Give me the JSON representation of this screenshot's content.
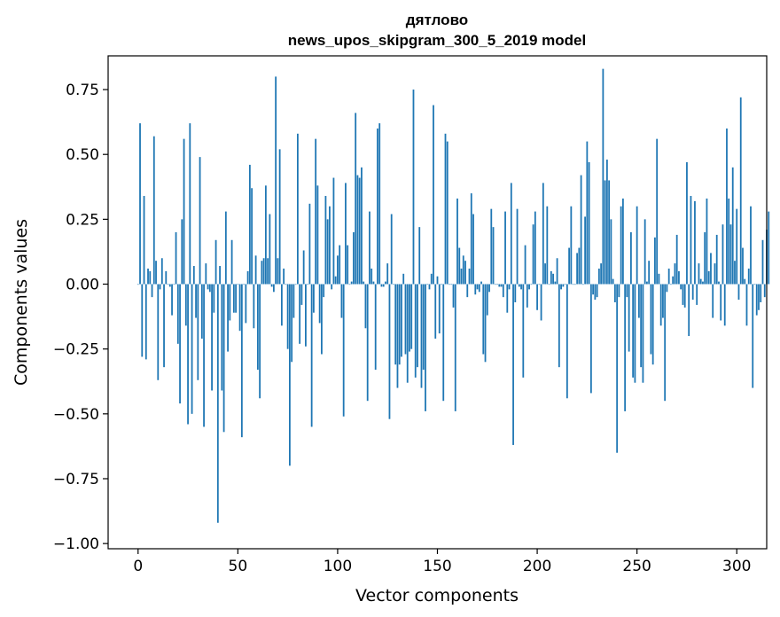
{
  "chart_data": {
    "type": "bar",
    "title": [
      "дятлово",
      "news_upos_skipgram_300_5_2019 model"
    ],
    "xlabel": "Vector components",
    "ylabel": "Components values",
    "xlim": [
      -15,
      315
    ],
    "ylim": [
      -1.02,
      0.88
    ],
    "xticks": [
      0,
      50,
      100,
      150,
      200,
      250,
      300
    ],
    "xtick_labels": [
      "0",
      "50",
      "100",
      "150",
      "200",
      "250",
      "300"
    ],
    "yticks": [
      -1.0,
      -0.75,
      -0.5,
      -0.25,
      0.0,
      0.25,
      0.5,
      0.75
    ],
    "ytick_labels": [
      "−1.00",
      "−0.75",
      "−0.50",
      "−0.25",
      "0.00",
      "0.25",
      "0.50",
      "0.75"
    ],
    "bar_color": "#1f77b4",
    "grid": false,
    "values": [
      0.0,
      0.62,
      -0.28,
      0.34,
      -0.29,
      0.06,
      0.05,
      -0.05,
      0.57,
      0.09,
      -0.37,
      -0.02,
      0.1,
      -0.32,
      0.05,
      0.0,
      -0.01,
      -0.12,
      0.0,
      0.2,
      -0.23,
      -0.46,
      0.25,
      0.56,
      -0.16,
      -0.54,
      0.62,
      -0.5,
      0.07,
      -0.13,
      -0.37,
      0.49,
      -0.21,
      -0.55,
      0.08,
      -0.02,
      -0.03,
      -0.41,
      -0.11,
      0.17,
      -0.92,
      0.07,
      -0.41,
      -0.57,
      0.28,
      -0.26,
      -0.14,
      0.17,
      -0.11,
      -0.11,
      0.0,
      -0.18,
      -0.59,
      0.0,
      -0.15,
      0.05,
      0.46,
      0.37,
      -0.17,
      0.11,
      -0.33,
      -0.44,
      0.09,
      0.1,
      0.38,
      0.1,
      0.27,
      -0.01,
      -0.03,
      0.8,
      0.1,
      0.52,
      -0.16,
      0.06,
      0.0,
      -0.25,
      -0.7,
      -0.3,
      -0.13,
      0.0,
      0.58,
      -0.23,
      -0.08,
      0.13,
      -0.24,
      0.0,
      0.31,
      -0.55,
      -0.11,
      0.56,
      0.38,
      -0.15,
      -0.27,
      -0.05,
      0.34,
      0.25,
      0.3,
      -0.02,
      0.41,
      0.03,
      0.11,
      0.15,
      -0.13,
      -0.51,
      0.39,
      0.15,
      0.0,
      0.01,
      0.2,
      0.66,
      0.42,
      0.41,
      0.45,
      0.01,
      -0.17,
      -0.45,
      0.28,
      0.06,
      0.01,
      -0.33,
      0.6,
      0.62,
      -0.01,
      -0.01,
      0.01,
      0.08,
      -0.52,
      0.27,
      0.0,
      -0.31,
      -0.4,
      -0.31,
      -0.28,
      0.04,
      -0.27,
      -0.38,
      -0.26,
      -0.25,
      0.75,
      -0.36,
      -0.32,
      0.22,
      -0.4,
      -0.33,
      -0.49,
      0.0,
      -0.02,
      0.04,
      0.69,
      -0.21,
      0.03,
      -0.19,
      0.0,
      -0.45,
      0.58,
      0.55,
      0.0,
      0.0,
      -0.09,
      -0.49,
      0.33,
      0.14,
      0.06,
      0.11,
      0.09,
      -0.05,
      0.06,
      0.35,
      0.27,
      -0.04,
      -0.02,
      -0.03,
      0.01,
      -0.27,
      -0.3,
      -0.12,
      -0.03,
      0.29,
      0.22,
      0.0,
      0.0,
      -0.01,
      -0.01,
      -0.05,
      0.28,
      -0.11,
      -0.02,
      0.39,
      -0.62,
      -0.07,
      0.29,
      -0.01,
      -0.02,
      -0.36,
      0.15,
      -0.09,
      -0.02,
      0.0,
      0.23,
      0.28,
      -0.1,
      0.0,
      -0.14,
      0.39,
      0.08,
      0.3,
      0.0,
      0.05,
      0.04,
      0.01,
      0.1,
      -0.32,
      -0.02,
      -0.01,
      0.0,
      -0.44,
      0.14,
      0.3,
      0.0,
      0.0,
      0.12,
      0.14,
      0.42,
      0.0,
      0.26,
      0.55,
      0.47,
      -0.42,
      -0.04,
      -0.06,
      -0.05,
      0.06,
      0.08,
      0.83,
      0.4,
      0.48,
      0.4,
      0.25,
      0.02,
      -0.07,
      -0.65,
      -0.05,
      0.3,
      0.33,
      -0.49,
      -0.05,
      -0.26,
      0.2,
      -0.36,
      -0.38,
      0.3,
      -0.13,
      -0.32,
      -0.38,
      0.25,
      0.01,
      0.09,
      -0.27,
      -0.31,
      0.18,
      0.56,
      0.04,
      -0.16,
      -0.13,
      -0.45,
      -0.03,
      0.06,
      0.0,
      0.03,
      0.08,
      0.19,
      0.05,
      -0.02,
      -0.08,
      -0.09,
      0.47,
      -0.2,
      0.34,
      -0.06,
      0.32,
      -0.08,
      0.08,
      0.02,
      0.01,
      0.2,
      0.33,
      0.05,
      0.12,
      -0.13,
      0.08,
      0.19,
      0.01,
      -0.14,
      0.23,
      -0.16,
      0.6,
      0.33,
      0.23,
      0.45,
      0.09,
      0.29,
      -0.06,
      0.72,
      0.14,
      0.02,
      -0.16,
      0.06,
      0.3,
      -0.4,
      0.0,
      -0.12,
      -0.1,
      -0.07,
      0.17,
      -0.05,
      0.21,
      0.28
    ]
  }
}
